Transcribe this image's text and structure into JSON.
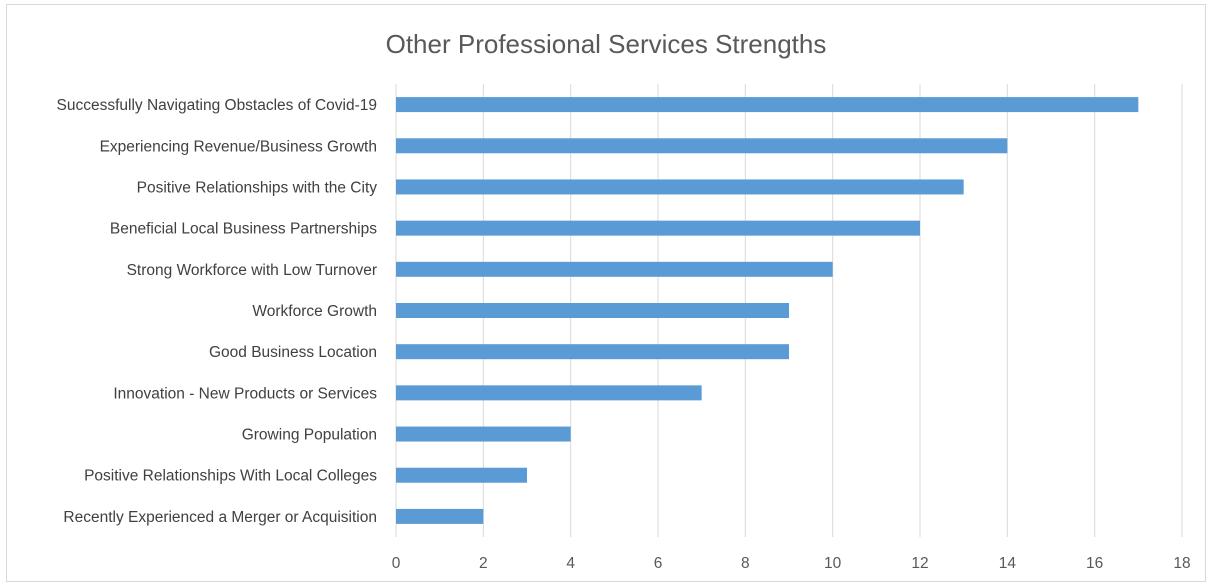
{
  "chart_data": {
    "type": "bar",
    "orientation": "horizontal",
    "title": "Other Professional Services Strengths",
    "categories": [
      "Successfully Navigating Obstacles of Covid-19",
      "Experiencing Revenue/Business Growth",
      "Positive Relationships with the City",
      "Beneficial Local Business Partnerships",
      "Strong Workforce with Low Turnover",
      "Workforce Growth",
      "Good Business Location",
      "Innovation - New Products or Services",
      "Growing Population",
      "Positive Relationships With Local Colleges",
      "Recently Experienced a Merger or Acquisition"
    ],
    "values": [
      17,
      14,
      13,
      12,
      10,
      9,
      9,
      7,
      4,
      3,
      2
    ],
    "xlim": [
      0,
      18
    ],
    "xticks": [
      "0",
      "2",
      "4",
      "6",
      "8",
      "10",
      "12",
      "14",
      "16",
      "18"
    ],
    "grid": "vertical",
    "bar_color": "#5b9bd5",
    "grid_color": "#d9d9d9",
    "legend": "none"
  }
}
